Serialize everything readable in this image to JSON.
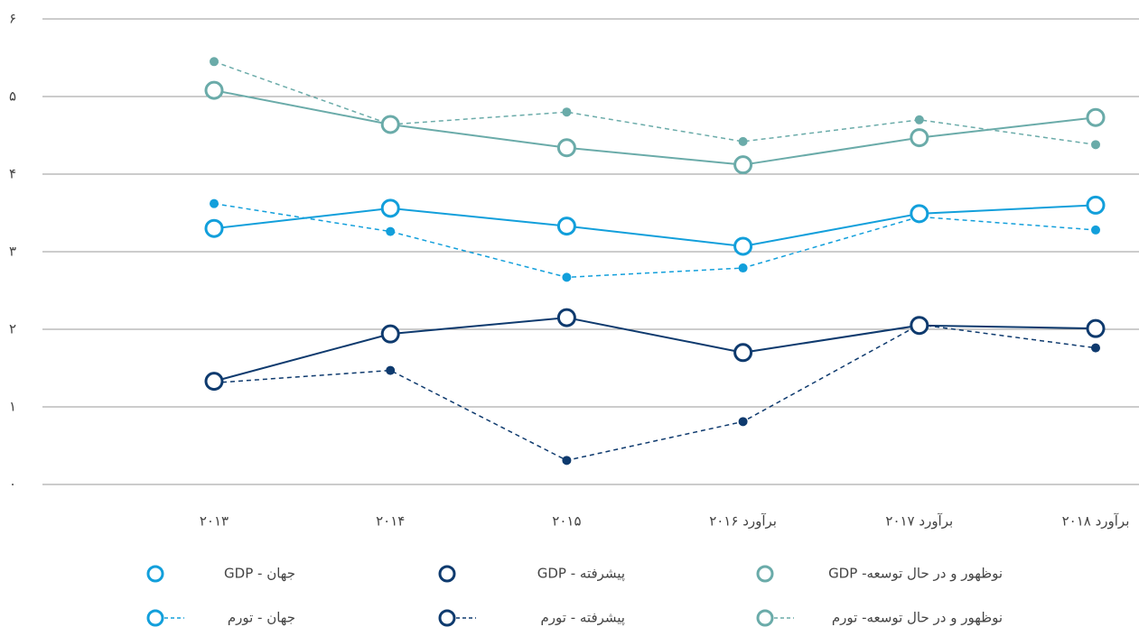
{
  "chart_data": {
    "type": "line",
    "categories": [
      "۲۰۱۳",
      "۲۰۱۴",
      "۲۰۱۵",
      "برآورد ۲۰۱۶",
      "برآورد ۲۰۱۷",
      "برآورد ۲۰۱۸"
    ],
    "ylim": [
      0,
      6
    ],
    "yticks": [
      {
        "value": 0,
        "label": "۰"
      },
      {
        "value": 1,
        "label": "۱"
      },
      {
        "value": 2,
        "label": "۲"
      },
      {
        "value": 3,
        "label": "۳"
      },
      {
        "value": 4,
        "label": "۴"
      },
      {
        "value": 5,
        "label": "۵"
      },
      {
        "value": 6,
        "label": "۶"
      }
    ],
    "grid": true,
    "series": [
      {
        "name": "جهان - GDP",
        "color": "#129fdb",
        "line_style": "solid",
        "values": [
          3.3,
          3.56,
          3.33,
          3.07,
          3.49,
          3.6
        ]
      },
      {
        "name": "پیشرفته - GDP",
        "color": "#0e3a6e",
        "line_style": "solid",
        "values": [
          1.33,
          1.94,
          2.15,
          1.7,
          2.05,
          2.01
        ]
      },
      {
        "name": "نوظهور و در حال توسعه- GDP",
        "color": "#6aaba9",
        "line_style": "solid",
        "values": [
          5.08,
          4.64,
          4.34,
          4.12,
          4.47,
          4.73
        ]
      },
      {
        "name": "جهان - تورم",
        "color": "#129fdb",
        "line_style": "dashed",
        "values": [
          3.62,
          3.26,
          2.67,
          2.79,
          3.45,
          3.28
        ]
      },
      {
        "name": "پیشرفته - تورم",
        "color": "#0e3a6e",
        "line_style": "dashed",
        "values": [
          1.31,
          1.47,
          0.31,
          0.81,
          2.06,
          1.76
        ]
      },
      {
        "name": "نوظهور و در حال توسعه- تورم",
        "color": "#6aaba9",
        "line_style": "dashed",
        "values": [
          5.45,
          4.64,
          4.8,
          4.42,
          4.7,
          4.38
        ]
      }
    ]
  }
}
